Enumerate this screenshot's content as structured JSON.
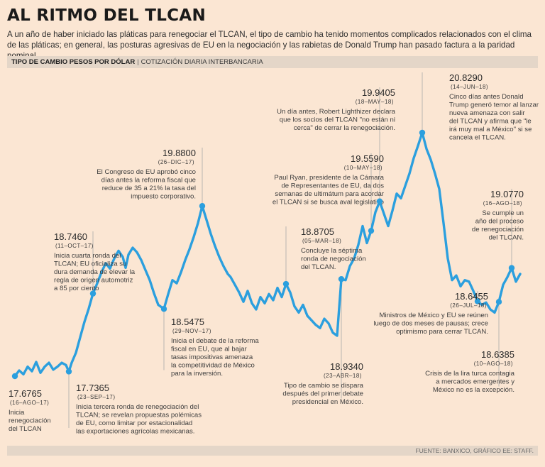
{
  "header": {
    "title": "AL RITMO DEL TLCAN",
    "intro": "A un año de haber iniciado las pláticas para renegociar el TLCAN, el tipo de cambio ha tenido momentos complicados relacionados con el clima de las pláticas; en general, las posturas agresivas de EU en la negociación y las rabietas de Donald Trump han pasado factura a la paridad nominal.",
    "subtitle_bold": "TIPO DE CAMBIO PESOS POR DÓLAR",
    "subtitle_sep": "|",
    "subtitle_rest": "COTIZACIÓN DIARIA INTERBANCARIA",
    "source": "FUENTE: BANXICO, GRÁFICO EE: STAFF."
  },
  "colors": {
    "line": "#2b9fde",
    "bg": "#fbe6d3",
    "bar": "#e4d6c8",
    "leader": "#a9a9a9"
  },
  "chart_data": {
    "type": "line",
    "title": "Tipo de cambio pesos por dólar",
    "subtitle": "Cotización diaria interbancaria",
    "ylim": [
      17.4,
      21.1
    ],
    "x_range_days": [
      0,
      365
    ],
    "series": [
      {
        "name": "Tipo de cambio",
        "points": [
          [
            0,
            17.6765
          ],
          [
            3,
            17.75
          ],
          [
            6,
            17.7
          ],
          [
            9,
            17.8
          ],
          [
            12,
            17.74
          ],
          [
            15,
            17.86
          ],
          [
            18,
            17.72
          ],
          [
            21,
            17.8
          ],
          [
            24,
            17.85
          ],
          [
            27,
            17.76
          ],
          [
            30,
            17.8
          ],
          [
            33,
            17.85
          ],
          [
            36,
            17.82
          ],
          [
            38,
            17.7365
          ],
          [
            40,
            17.85
          ],
          [
            43,
            17.98
          ],
          [
            46,
            18.18
          ],
          [
            49,
            18.38
          ],
          [
            52,
            18.55
          ],
          [
            55,
            18.746
          ],
          [
            58,
            18.88
          ],
          [
            61,
            19.02
          ],
          [
            64,
            19.14
          ],
          [
            67,
            19.07
          ],
          [
            70,
            19.2
          ],
          [
            73,
            19.3
          ],
          [
            76,
            19.22
          ],
          [
            78,
            19.08
          ],
          [
            80,
            19.25
          ],
          [
            83,
            19.34
          ],
          [
            86,
            19.28
          ],
          [
            89,
            19.18
          ],
          [
            92,
            19.05
          ],
          [
            95,
            18.92
          ],
          [
            98,
            18.75
          ],
          [
            101,
            18.6
          ],
          [
            105,
            18.5475
          ],
          [
            108,
            18.74
          ],
          [
            111,
            18.92
          ],
          [
            114,
            18.88
          ],
          [
            117,
            19.02
          ],
          [
            120,
            19.18
          ],
          [
            123,
            19.32
          ],
          [
            126,
            19.48
          ],
          [
            129,
            19.66
          ],
          [
            132,
            19.88
          ],
          [
            135,
            19.7
          ],
          [
            138,
            19.52
          ],
          [
            141,
            19.36
          ],
          [
            144,
            19.22
          ],
          [
            147,
            19.1
          ],
          [
            150,
            19.0
          ],
          [
            152,
            18.96
          ],
          [
            155,
            18.86
          ],
          [
            158,
            18.76
          ],
          [
            161,
            18.64
          ],
          [
            164,
            18.78
          ],
          [
            167,
            18.62
          ],
          [
            170,
            18.54
          ],
          [
            173,
            18.7
          ],
          [
            176,
            18.62
          ],
          [
            179,
            18.74
          ],
          [
            182,
            18.66
          ],
          [
            185,
            18.82
          ],
          [
            188,
            18.7
          ],
          [
            191,
            18.8705
          ],
          [
            194,
            18.76
          ],
          [
            197,
            18.58
          ],
          [
            200,
            18.5
          ],
          [
            203,
            18.6
          ],
          [
            206,
            18.46
          ],
          [
            209,
            18.4
          ],
          [
            212,
            18.34
          ],
          [
            215,
            18.3
          ],
          [
            218,
            18.42
          ],
          [
            221,
            18.36
          ],
          [
            224,
            18.24
          ],
          [
            227,
            18.2
          ],
          [
            230,
            18.934
          ],
          [
            233,
            18.92
          ],
          [
            236,
            19.1
          ],
          [
            239,
            19.2
          ],
          [
            242,
            19.38
          ],
          [
            245,
            19.62
          ],
          [
            248,
            19.4
          ],
          [
            251,
            19.559
          ],
          [
            254,
            19.8
          ],
          [
            257,
            19.9405
          ],
          [
            260,
            19.78
          ],
          [
            263,
            19.62
          ],
          [
            266,
            19.82
          ],
          [
            269,
            20.04
          ],
          [
            272,
            19.98
          ],
          [
            275,
            20.14
          ],
          [
            278,
            20.3
          ],
          [
            281,
            20.5
          ],
          [
            284,
            20.66
          ],
          [
            287,
            20.829
          ],
          [
            290,
            20.62
          ],
          [
            293,
            20.48
          ],
          [
            296,
            20.3
          ],
          [
            299,
            20.1
          ],
          [
            302,
            19.66
          ],
          [
            305,
            19.2
          ],
          [
            308,
            18.92
          ],
          [
            311,
            18.98
          ],
          [
            314,
            18.84
          ],
          [
            317,
            18.92
          ],
          [
            320,
            18.9
          ],
          [
            323,
            18.78
          ],
          [
            326,
            18.6455
          ],
          [
            329,
            18.6
          ],
          [
            332,
            18.63
          ],
          [
            335,
            18.54
          ],
          [
            338,
            18.5
          ],
          [
            341,
            18.6385
          ],
          [
            344,
            18.86
          ],
          [
            347,
            18.96
          ],
          [
            350,
            19.077
          ],
          [
            353,
            18.9
          ],
          [
            356,
            19.0
          ]
        ]
      }
    ],
    "annotations": [
      {
        "day": 0,
        "value": "17.6765",
        "date": "(16–AGO–17)",
        "text": [
          "Inicia",
          "renegociación",
          "del TLCAN"
        ]
      },
      {
        "day": 38,
        "value": "17.7365",
        "date": "(23–SEP–17)",
        "text": [
          "Inicia tercera ronda de renegociación del",
          "TLCAN; se revelan propuestas polémicas",
          "de EU, como limitar por estacionalidad",
          "las exportaciones agrícolas mexicanas."
        ]
      },
      {
        "day": 55,
        "value": "18.7460",
        "date": "(11–OCT–17)",
        "text": [
          "Inicia cuarta ronda del",
          "TLCAN; EU oficializa su",
          "dura demanda de elevar la",
          "regla de origen automotriz",
          "a 85 por ciento"
        ]
      },
      {
        "day": 105,
        "value": "18.5475",
        "date": "(29–NOV–17)",
        "text": [
          "Inicia el debate de la reforma",
          "fiscal en EU, que al bajar",
          "tasas impositivas amenaza",
          "la competitividad de México",
          "para la inversión."
        ]
      },
      {
        "day": 132,
        "value": "19.8800",
        "date": "(26–DIC–17)",
        "text": [
          "El Congreso de EU aprobó cinco",
          "días antes la reforma fiscal que",
          "reduce de 35 a 21% la tasa del",
          "impuesto corporativo."
        ]
      },
      {
        "day": 191,
        "value": "18.8705",
        "date": "(05–MAR–18)",
        "text": [
          "Concluye la séptima",
          "ronda de negociación",
          "del TLCAN."
        ]
      },
      {
        "day": 230,
        "value": "18.9340",
        "date": "(23–ABR–18)",
        "text": [
          "Tipo de cambio se dispara",
          "después del primer debate",
          "presidencial en México."
        ]
      },
      {
        "day": 251,
        "value": "19.5590",
        "date": "(10–MAY–18)",
        "text": [
          "Paul Ryan, presidente de la Cámara",
          "de Representantes de EU, da dos",
          "semanas de ultimátum para acordar",
          "el TLCAN si se busca aval legislativo"
        ]
      },
      {
        "day": 257,
        "value": "19.9405",
        "date": "(18–MAY–18)",
        "text": [
          "Un día antes, Robert Lighthizer declara",
          "que los socios del TLCAN \"no están ni",
          "cerca\" de cerrar la renegociación."
        ]
      },
      {
        "day": 287,
        "value": "20.8290",
        "date": "(14–JUN–18)",
        "text": [
          "Cinco días antes Donald",
          "Trump generó temor al lanzar",
          "nueva amenaza con salir",
          "del TLCAN y afirma que \"le",
          "irá muy mal a México\" si se",
          "cancela el TLCAN."
        ]
      },
      {
        "day": 326,
        "value": "18.6455",
        "date": "(26–JUL–18)",
        "text": [
          "Ministros de México y EU se reúnen",
          "luego de dos meses de pausas; crece",
          "optimismo para cerrar TLCAN."
        ]
      },
      {
        "day": 341,
        "value": "18.6385",
        "date": "(10–AGO–18)",
        "text": [
          "Crisis de la lira turca contagia",
          "a mercados emergentes y",
          "México no es la excepción."
        ]
      },
      {
        "day": 350,
        "value": "19.0770",
        "date": "(16–AGO–18)",
        "text": [
          "Se cumple un",
          "año del proceso",
          "de renegociación",
          "del TLCAN."
        ]
      }
    ]
  }
}
